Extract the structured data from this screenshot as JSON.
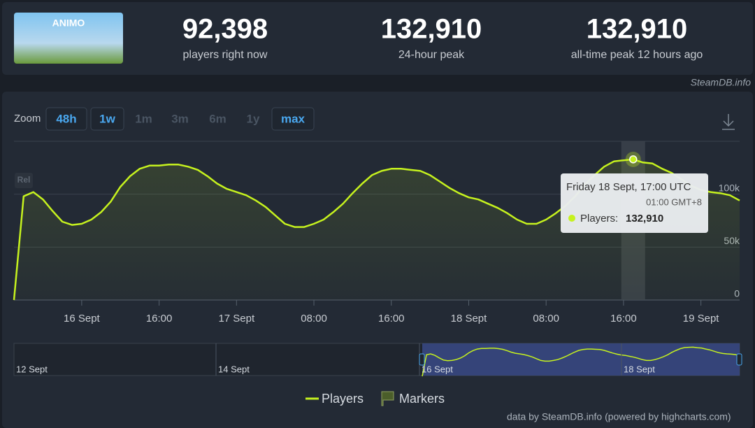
{
  "header": {
    "game_logo": "ANIMO",
    "stats": [
      {
        "value": "92,398",
        "label": "players right now"
      },
      {
        "value": "132,910",
        "label": "24-hour peak"
      },
      {
        "value": "132,910",
        "label": "all-time peak 12 hours ago"
      }
    ],
    "credit": "SteamDB.info"
  },
  "zoom": {
    "label": "Zoom",
    "buttons": [
      "48h",
      "1w",
      "1m",
      "3m",
      "6m",
      "1y",
      "max"
    ]
  },
  "badge": "Rel",
  "tooltip": {
    "date": "Friday 18 Sept, 17:00 UTC",
    "local": "01:00 GMT+8",
    "label": "Players:",
    "value": "132,910"
  },
  "navigator": {
    "labels": [
      "12 Sept",
      "14 Sept",
      "16 Sept",
      "18 Sept"
    ]
  },
  "legend": [
    "Players",
    "Markers"
  ],
  "footer": "data by SteamDB.info (powered by highcharts.com)",
  "chart_data": {
    "type": "line",
    "x": [
      0,
      1,
      2,
      3,
      4,
      5,
      6,
      7,
      8,
      9,
      10,
      11,
      12,
      13,
      14,
      15,
      16,
      17,
      18,
      19,
      20,
      21,
      22,
      23,
      24,
      25,
      26,
      27,
      28,
      29,
      30,
      31,
      32,
      33,
      34,
      35,
      36,
      37,
      38,
      39,
      40,
      41,
      42,
      43,
      44,
      45,
      46,
      47,
      48,
      49,
      50,
      51,
      52,
      53,
      54,
      55,
      56,
      57,
      58,
      59,
      60,
      61,
      62,
      63,
      64,
      65,
      66,
      67,
      68,
      69,
      70,
      71,
      72,
      73,
      74,
      75
    ],
    "series": [
      {
        "name": "Players",
        "color": "#c6f21e",
        "values": [
          0,
          98000,
          102000,
          95000,
          84000,
          74000,
          71000,
          72000,
          76000,
          83000,
          93000,
          107000,
          117000,
          124000,
          127000,
          127000,
          128000,
          128000,
          126000,
          123000,
          117000,
          110000,
          105000,
          102000,
          99000,
          94000,
          88000,
          80000,
          72000,
          69000,
          69000,
          72000,
          76000,
          83000,
          91000,
          101000,
          110000,
          118000,
          122000,
          124000,
          124000,
          123000,
          122000,
          118000,
          112000,
          106000,
          101000,
          97000,
          95000,
          91000,
          87000,
          82000,
          76000,
          72000,
          72000,
          76000,
          82000,
          89000,
          98000,
          109000,
          118000,
          126000,
          131000,
          132000,
          132910,
          130000,
          129000,
          124000,
          120000,
          114000,
          108000,
          104000,
          102000,
          101000,
          99000,
          94000
        ]
      }
    ],
    "xlim": [
      0,
      75
    ],
    "xticks": [
      {
        "value": 7,
        "label": "16 Sept"
      },
      {
        "value": 15,
        "label": "16:00"
      },
      {
        "value": 23,
        "label": "17 Sept"
      },
      {
        "value": 31,
        "label": "08:00"
      },
      {
        "value": 39,
        "label": "16:00"
      },
      {
        "value": 47,
        "label": "18 Sept"
      },
      {
        "value": 55,
        "label": "08:00"
      },
      {
        "value": 63,
        "label": "16:00"
      },
      {
        "value": 71,
        "label": "19 Sept"
      }
    ],
    "ylim": [
      0,
      150000
    ],
    "yticks": [
      0,
      {
        "value": 50000,
        "label": "50k"
      },
      {
        "value": 100000,
        "label": "100k"
      }
    ],
    "grid": true,
    "highlight_index": 64
  }
}
